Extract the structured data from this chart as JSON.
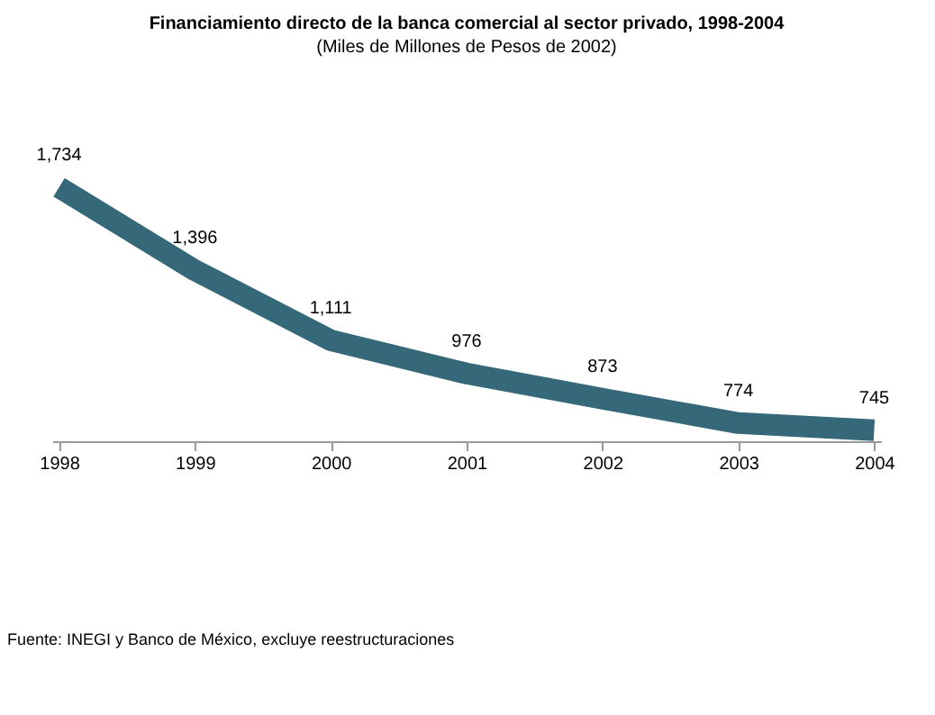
{
  "chart_data": {
    "type": "line",
    "title": "Financiamiento directo de la banca comercial al sector privado, 1998-2004",
    "subtitle": "(Miles de Millones de Pesos de 2002)",
    "categories": [
      "1998",
      "1999",
      "2000",
      "2001",
      "2002",
      "2003",
      "2004"
    ],
    "series": [
      {
        "color": "#356879",
        "values": [
          1734,
          1396,
          1111,
          976,
          873,
          774,
          745
        ],
        "value_labels": [
          "1,734",
          "1,396",
          "1,111",
          "976",
          "873",
          "774",
          "745"
        ]
      }
    ],
    "tick_labels": "x",
    "marker": "none",
    "line_style": "solid",
    "annotations": [
      "Fuente: INEGI y Banco de México, excluye reestructuraciones"
    ]
  }
}
